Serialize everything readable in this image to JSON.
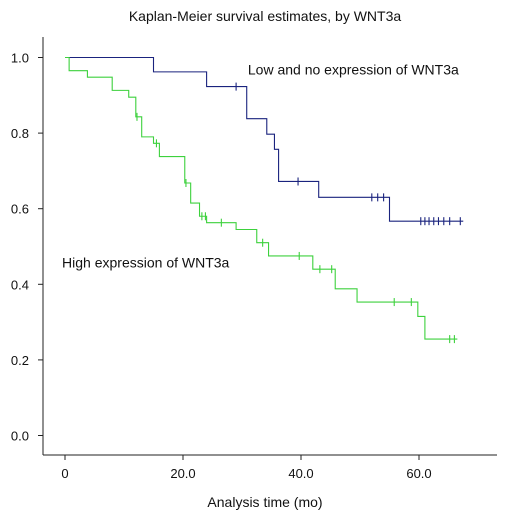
{
  "chart_data": {
    "type": "line",
    "title": "Kaplan-Meier survival estimates, by WNT3a",
    "xlabel": "Analysis time (mo)",
    "ylabel": "",
    "xlim": [
      0,
      70
    ],
    "ylim": [
      0,
      1.05
    ],
    "x_ticks": [
      0,
      20,
      40,
      60
    ],
    "x_tick_labels": [
      "0",
      "20.0",
      "40.0",
      "60.0"
    ],
    "y_ticks": [
      0,
      0.2,
      0.4,
      0.6,
      0.8,
      1.0
    ],
    "y_tick_labels": [
      "0.0",
      "0.2",
      "0.4",
      "0.6",
      "0.8",
      "1.0"
    ],
    "grid": false,
    "annotations": [
      {
        "text": "Low and no expression of WNT3a",
        "x": 31,
        "y": 0.955
      },
      {
        "text": "High expression of WNT3a",
        "x": -0.5,
        "y": 0.445
      }
    ],
    "series": [
      {
        "name": "Low and no expression of WNT3a",
        "color": "#1a237e",
        "steps": [
          [
            0,
            1.0
          ],
          [
            15,
            0.962
          ],
          [
            24,
            0.923
          ],
          [
            30.8,
            0.838
          ],
          [
            34.2,
            0.797
          ],
          [
            35.5,
            0.757
          ],
          [
            36.2,
            0.672
          ],
          [
            43,
            0.63
          ],
          [
            55,
            0.567
          ],
          [
            67.5,
            0.567
          ]
        ],
        "censored": [
          [
            29,
            0.923
          ],
          [
            39.5,
            0.672
          ],
          [
            52,
            0.63
          ],
          [
            53,
            0.63
          ],
          [
            54,
            0.63
          ],
          [
            60.3,
            0.567
          ],
          [
            61,
            0.567
          ],
          [
            61.7,
            0.567
          ],
          [
            62.5,
            0.567
          ],
          [
            63.3,
            0.567
          ],
          [
            64.2,
            0.567
          ],
          [
            65.2,
            0.567
          ],
          [
            67,
            0.567
          ]
        ]
      },
      {
        "name": "High expression of WNT3a",
        "color": "#3dd13d",
        "steps": [
          [
            0,
            1.0
          ],
          [
            0.7,
            0.965
          ],
          [
            3.8,
            0.948
          ],
          [
            8,
            0.913
          ],
          [
            10.8,
            0.895
          ],
          [
            12,
            0.843
          ],
          [
            13,
            0.79
          ],
          [
            15,
            0.773
          ],
          [
            16,
            0.738
          ],
          [
            20.3,
            0.668
          ],
          [
            21.3,
            0.615
          ],
          [
            22.8,
            0.58
          ],
          [
            24,
            0.563
          ],
          [
            29,
            0.545
          ],
          [
            32.5,
            0.51
          ],
          [
            34.5,
            0.475
          ],
          [
            42,
            0.44
          ],
          [
            45.8,
            0.388
          ],
          [
            49.5,
            0.353
          ],
          [
            59.8,
            0.315
          ],
          [
            61,
            0.255
          ],
          [
            66.5,
            0.255
          ]
        ],
        "censored": [
          [
            12.2,
            0.843
          ],
          [
            15.5,
            0.773
          ],
          [
            20.5,
            0.668
          ],
          [
            23.2,
            0.58
          ],
          [
            23.8,
            0.58
          ],
          [
            26.5,
            0.563
          ],
          [
            33.5,
            0.51
          ],
          [
            39.7,
            0.475
          ],
          [
            43.2,
            0.44
          ],
          [
            45.2,
            0.44
          ],
          [
            55.8,
            0.353
          ],
          [
            58.7,
            0.353
          ],
          [
            65.2,
            0.255
          ],
          [
            66,
            0.255
          ]
        ]
      }
    ]
  }
}
